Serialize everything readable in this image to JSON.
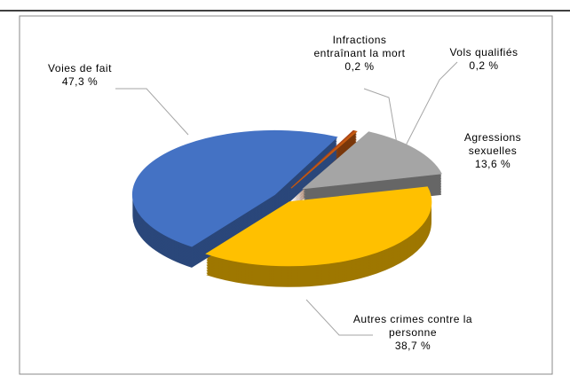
{
  "chart_data": {
    "type": "pie",
    "categories": [
      "Infractions entraînant la mort",
      "Vols qualifiés",
      "Agressions sexuelles",
      "Autres crimes contre la personne",
      "Voies de fait"
    ],
    "values": [
      0.2,
      0.2,
      13.6,
      38.7,
      47.3
    ],
    "value_labels": [
      "0,2 %",
      "0,2 %",
      "13,6 %",
      "38,7 %",
      "47,3 %"
    ],
    "colors": [
      "#a9461a",
      "#c55a11",
      "#a5a5a5",
      "#ffc000",
      "#4472c4"
    ]
  }
}
